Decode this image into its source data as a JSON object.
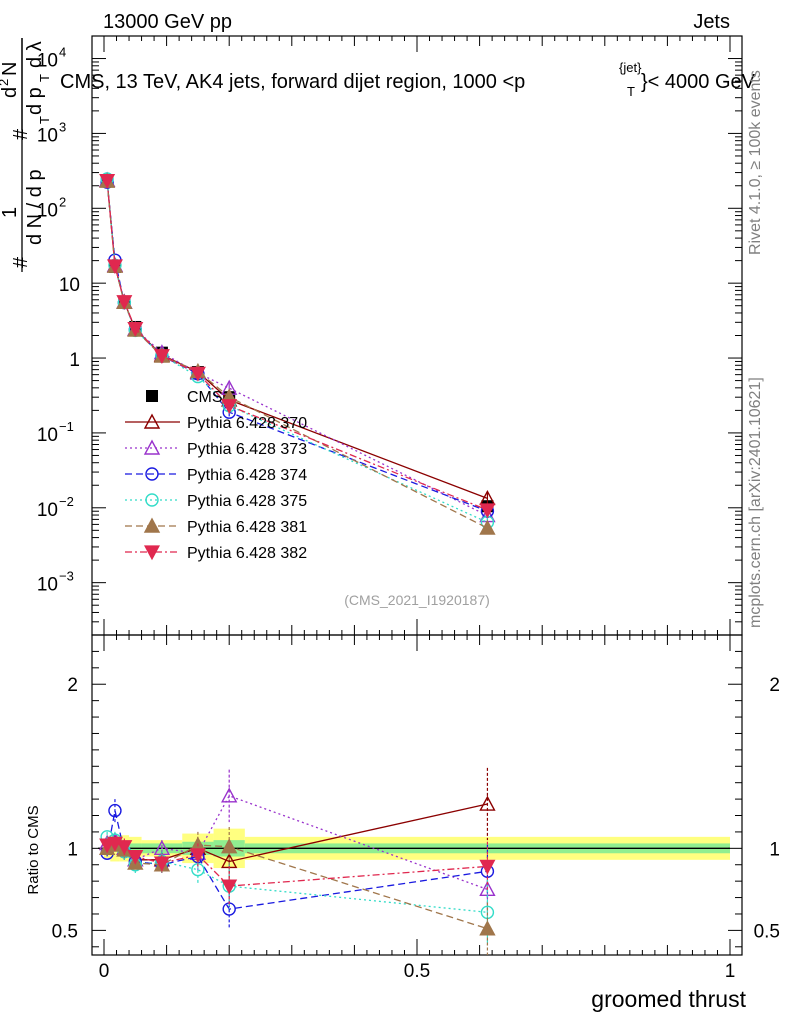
{
  "header": {
    "left": "13000 GeV pp",
    "right": "Jets",
    "plot_title_pre": "CMS, 13 TeV, AK4 jets, forward dijet region, 1000 <p",
    "plot_title_sup": "{jet}",
    "plot_title_sub": "T",
    "plot_title_post": "}< 4000 GeV",
    "analysis_tag": "(CMS_2021_I1920187)"
  },
  "side": {
    "rivet": "Rivet 4.1.0, ≥ 100k events",
    "mcplots": "mcplots.cern.ch [arXiv:2401.10621]"
  },
  "colors": {
    "cms": "#000000",
    "p370": "#8b0000",
    "p373": "#9932cc",
    "p374": "#1a1ae0",
    "p375": "#33dcc8",
    "p381": "#a0764b",
    "p382": "#e0284f",
    "band_syst": "#ffff80",
    "band_stat": "#90ee90"
  },
  "chart_data": {
    "type": "line",
    "xlabel": "groomed thrust",
    "xlim": [
      0,
      1
    ],
    "x_ticks": [
      "0",
      "0.5",
      "1"
    ],
    "main": {
      "ylabel_parts": [
        "#",
        "1",
        "d N / d p",
        "T",
        "#",
        "d p",
        "T",
        "d",
        "2",
        "N",
        "d λ"
      ],
      "yscale": "log",
      "ylim": [
        0.0002,
        20000
      ],
      "y_ticks": [
        {
          "base": "10",
          "exp": "4",
          "val": 10000
        },
        {
          "base": "10",
          "exp": "3",
          "val": 1000
        },
        {
          "base": "10",
          "exp": "2",
          "val": 100
        },
        {
          "label": "10",
          "val": 10
        },
        {
          "label": "1",
          "val": 1
        },
        {
          "base": "10",
          "exp": "−1",
          "val": 0.1
        },
        {
          "base": "10",
          "exp": "−2",
          "val": 0.01
        },
        {
          "base": "10",
          "exp": "−3",
          "val": 0.001
        }
      ]
    },
    "ratio": {
      "ylabel": "Ratio to CMS",
      "ylim": [
        0.35,
        2.3
      ],
      "y_ticks": [
        "0.5",
        "1",
        "2"
      ]
    },
    "bins": [
      [
        0,
        0.01
      ],
      [
        0.01,
        0.025
      ],
      [
        0.025,
        0.04
      ],
      [
        0.04,
        0.06
      ],
      [
        0.06,
        0.125
      ],
      [
        0.125,
        0.175
      ],
      [
        0.175,
        0.225
      ],
      [
        0.225,
        1.0
      ]
    ],
    "band_stat": [
      0.015,
      0.02,
      0.02,
      0.03,
      0.03,
      0.04,
      0.05,
      0.03
    ],
    "band_syst": [
      0.06,
      0.08,
      0.08,
      0.07,
      0.05,
      0.09,
      0.12,
      0.07
    ],
    "series": [
      {
        "name": "CMS",
        "key": "cms",
        "marker": "square",
        "x": [
          0.005,
          0.0175,
          0.0325,
          0.05,
          0.0925,
          0.15,
          0.2,
          0.6125
        ],
        "y": [
          230,
          16.5,
          5.6,
          2.6,
          1.18,
          0.65,
          0.3,
          0.0105
        ]
      },
      {
        "name": "Pythia 6.428 370",
        "key": "p370",
        "marker": "triangle-open",
        "dash": "solid",
        "x": [
          0.005,
          0.0175,
          0.0325,
          0.05,
          0.0925,
          0.15,
          0.2,
          0.6125
        ],
        "ratio": [
          1.03,
          1.04,
          1.0,
          0.93,
          0.93,
          1.0,
          0.92,
          1.27
        ],
        "err": [
          0.02,
          0.04,
          0.05,
          0.04,
          0.05,
          0.07,
          0.1,
          0.22
        ]
      },
      {
        "name": "Pythia 6.428 373",
        "key": "p373",
        "marker": "triangle-open",
        "dash": "2,3",
        "x": [
          0.005,
          0.0175,
          0.0325,
          0.05,
          0.0925,
          0.15,
          0.2,
          0.6125
        ],
        "ratio": [
          1.03,
          1.05,
          1.0,
          0.93,
          1.0,
          0.97,
          1.32,
          0.75
        ],
        "err": [
          0.02,
          0.04,
          0.05,
          0.04,
          0.05,
          0.07,
          0.16,
          0.14
        ]
      },
      {
        "name": "Pythia 6.428 374",
        "key": "p374",
        "marker": "circle-open",
        "dash": "7,4",
        "x": [
          0.005,
          0.0175,
          0.0325,
          0.05,
          0.0925,
          0.15,
          0.2,
          0.6125
        ],
        "ratio": [
          0.97,
          1.23,
          0.98,
          0.92,
          0.9,
          0.95,
          0.63,
          0.86
        ],
        "err": [
          0.03,
          0.07,
          0.05,
          0.04,
          0.05,
          0.08,
          0.12,
          0.16
        ]
      },
      {
        "name": "Pythia 6.428 375",
        "key": "p375",
        "marker": "circle-open",
        "dash": "2,3",
        "x": [
          0.005,
          0.0175,
          0.0325,
          0.05,
          0.0925,
          0.15,
          0.2,
          0.6125
        ],
        "ratio": [
          1.07,
          1.05,
          0.98,
          0.9,
          0.92,
          0.87,
          0.77,
          0.61
        ],
        "err": [
          0.03,
          0.05,
          0.05,
          0.05,
          0.06,
          0.09,
          0.14,
          0.2
        ]
      },
      {
        "name": "Pythia 6.428 381",
        "key": "p381",
        "marker": "triangle-fill",
        "dash": "7,4",
        "x": [
          0.005,
          0.0175,
          0.0325,
          0.05,
          0.0925,
          0.15,
          0.2,
          0.6125
        ],
        "ratio": [
          1.0,
          1.02,
          0.99,
          0.91,
          0.9,
          1.02,
          1.01,
          0.51
        ],
        "err": [
          0.02,
          0.04,
          0.05,
          0.04,
          0.06,
          0.08,
          0.12,
          0.16
        ]
      },
      {
        "name": "Pythia 6.428 382",
        "key": "p382",
        "marker": "triangle-down-fill",
        "dash": "7,3,2,3",
        "x": [
          0.005,
          0.0175,
          0.0325,
          0.05,
          0.0925,
          0.15,
          0.2,
          0.6125
        ],
        "ratio": [
          1.02,
          1.03,
          1.01,
          0.95,
          0.91,
          0.96,
          0.77,
          0.89
        ],
        "err": [
          0.02,
          0.04,
          0.05,
          0.04,
          0.05,
          0.07,
          0.12,
          0.15
        ]
      }
    ]
  }
}
